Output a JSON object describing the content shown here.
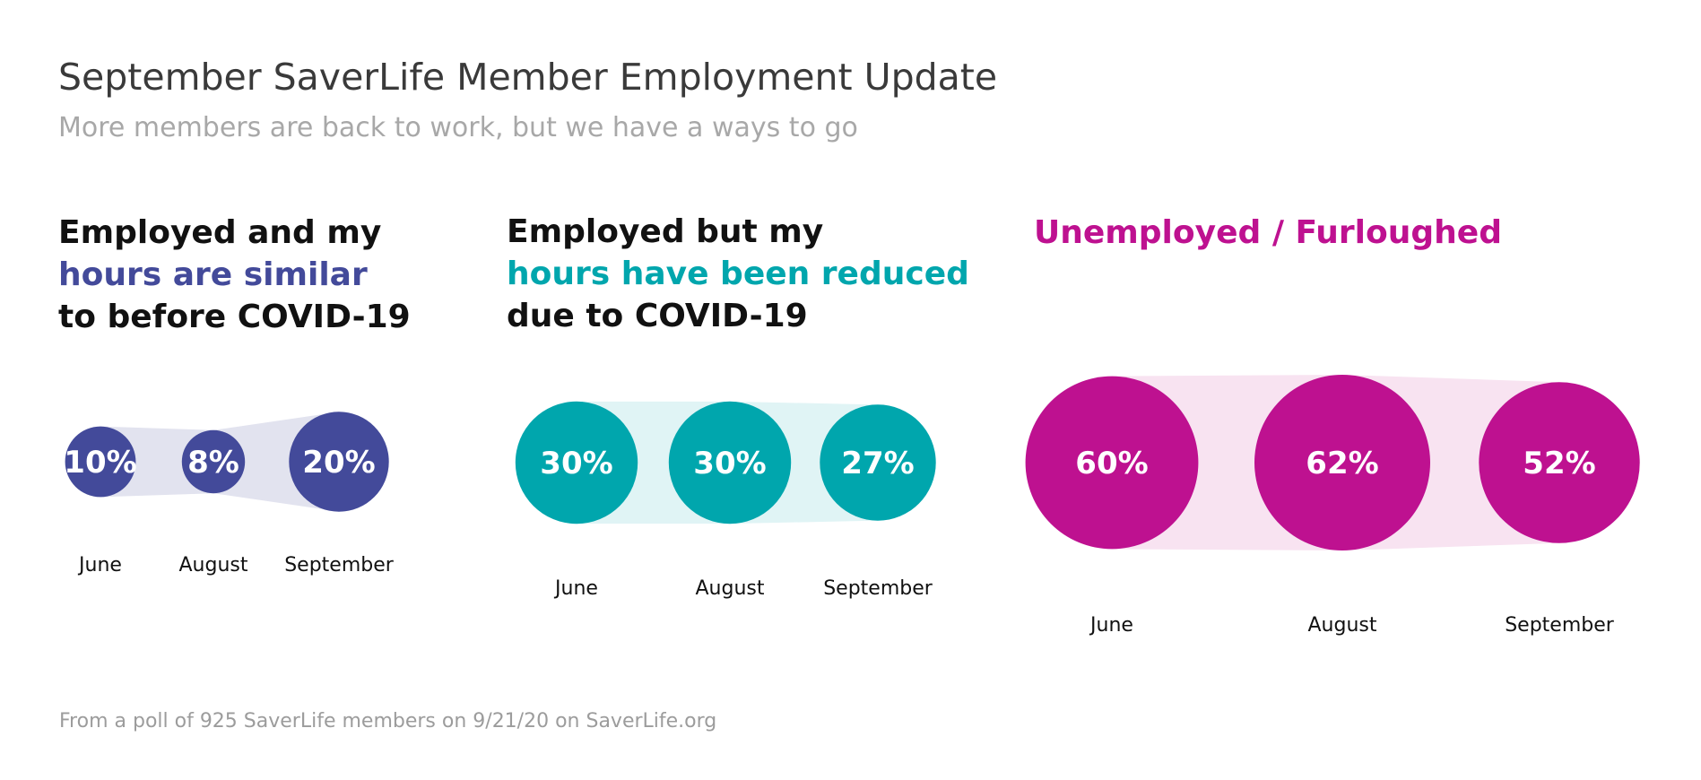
{
  "title": "September SaverLife Member Employment Update",
  "subtitle": "More members are back to work, but we have a ways to go",
  "footnote": "From a poll of 925 SaverLife members on 9/21/20 on SaverLife.org",
  "colors": {
    "similar": "#434a9a",
    "similar_band": "#e2e3ef",
    "reduced": "#00a6ad",
    "reduced_band": "#e0f4f5",
    "unemployed": "#be1190",
    "unemployed_band": "#f8e3f1",
    "heading_dark": "#111111"
  },
  "headings": {
    "similar": {
      "line1": "Employed and my",
      "line2": "hours are similar",
      "line3": "to before COVID-19"
    },
    "reduced": {
      "line1": "Employed but my",
      "line2": "hours have been reduced",
      "line3": "due to COVID-19"
    },
    "unemployed": {
      "line1": "Unemployed / Furloughed"
    }
  },
  "chart_data": [
    {
      "type": "bubble",
      "title": "Employed and my hours are similar to before COVID-19",
      "categories": [
        "June",
        "August",
        "September"
      ],
      "values": [
        10,
        8,
        20
      ],
      "labels": [
        "10%",
        "8%",
        "20%"
      ],
      "unit": "%"
    },
    {
      "type": "bubble",
      "title": "Employed but my hours have been reduced due to COVID-19",
      "categories": [
        "June",
        "August",
        "September"
      ],
      "values": [
        30,
        30,
        27
      ],
      "labels": [
        "30%",
        "30%",
        "27%"
      ],
      "unit": "%"
    },
    {
      "type": "bubble",
      "title": "Unemployed / Furloughed",
      "categories": [
        "June",
        "August",
        "September"
      ],
      "values": [
        60,
        62,
        52
      ],
      "labels": [
        "60%",
        "62%",
        "52%"
      ],
      "unit": "%"
    }
  ]
}
